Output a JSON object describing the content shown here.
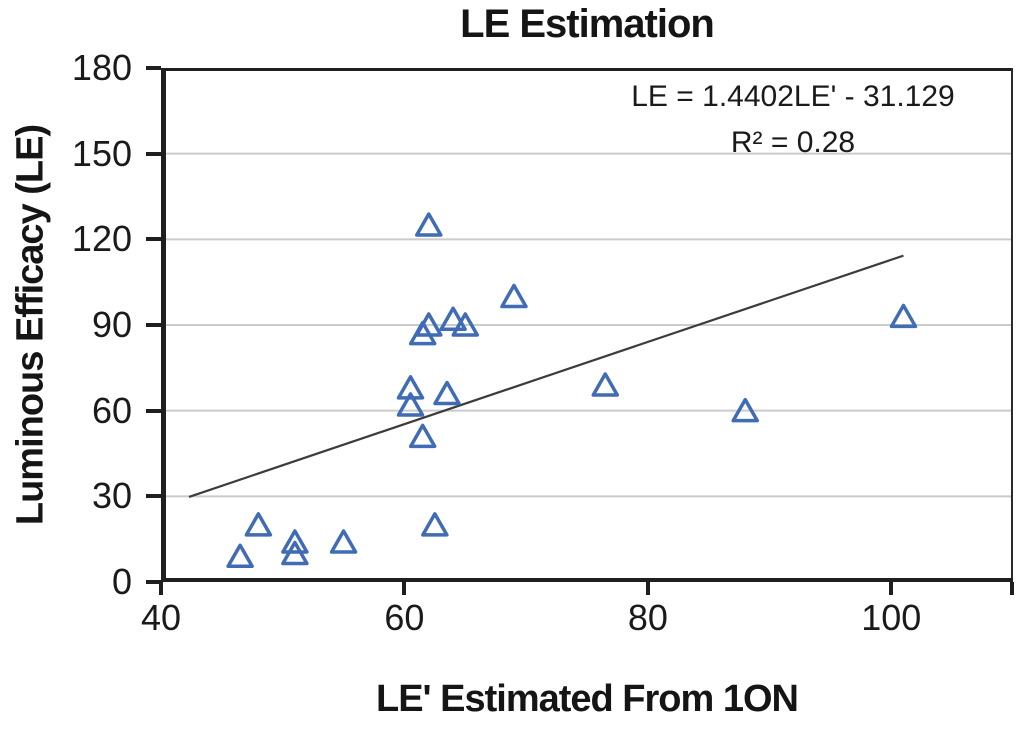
{
  "chart_data": {
    "type": "scatter",
    "title": "LE Estimation",
    "xlabel": "LE' Estimated From 1ON",
    "ylabel": "Luminous Efficacy (LE)",
    "xlim": [
      40,
      110
    ],
    "ylim": [
      0,
      180
    ],
    "xticks": [
      40,
      60,
      80,
      100
    ],
    "yticks": [
      0,
      30,
      60,
      90,
      120,
      150,
      180
    ],
    "grid": "horizontal-only",
    "legend": "none",
    "annotation": {
      "equation": "LE = 1.4402LE' - 31.129",
      "r_squared": "R² = 0.28"
    },
    "marker": {
      "shape": "open-triangle",
      "color": "#3f6cb5"
    },
    "trendline": {
      "x1": 42.3,
      "y1": 29.8,
      "x2": 101,
      "y2": 114.3,
      "color": "#3c3c3c"
    },
    "points": [
      {
        "x": 46.5,
        "y": 9
      },
      {
        "x": 48,
        "y": 20
      },
      {
        "x": 51,
        "y": 10
      },
      {
        "x": 51,
        "y": 14
      },
      {
        "x": 55,
        "y": 14
      },
      {
        "x": 62.5,
        "y": 20
      },
      {
        "x": 61.5,
        "y": 51
      },
      {
        "x": 60.5,
        "y": 62
      },
      {
        "x": 60.5,
        "y": 68
      },
      {
        "x": 63.5,
        "y": 66
      },
      {
        "x": 61.5,
        "y": 87
      },
      {
        "x": 62,
        "y": 90
      },
      {
        "x": 64,
        "y": 92
      },
      {
        "x": 65,
        "y": 90
      },
      {
        "x": 62,
        "y": 125
      },
      {
        "x": 69,
        "y": 100
      },
      {
        "x": 76.5,
        "y": 69
      },
      {
        "x": 88,
        "y": 60
      },
      {
        "x": 101,
        "y": 93
      }
    ],
    "colors": {
      "axis": "#1f1f1f",
      "grid": "#cbcbcb",
      "text": "#1a1a1a"
    }
  }
}
